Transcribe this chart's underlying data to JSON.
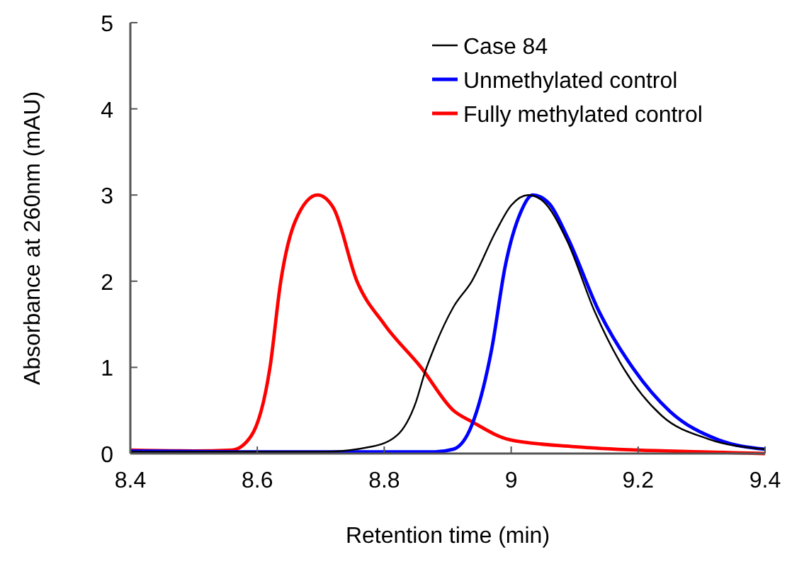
{
  "chart_data": {
    "type": "line",
    "xlabel": "Retention time (min)",
    "ylabel": "Absorbance at 260nm (mAU)",
    "xlim": [
      8.4,
      9.4
    ],
    "ylim": [
      0,
      5
    ],
    "xticks": [
      8.4,
      8.6,
      8.8,
      {
        "value": 9,
        "label": "9"
      },
      9.2,
      9.4
    ],
    "yticks": [
      0,
      1,
      2,
      3,
      4,
      5
    ],
    "grid": false,
    "legend": "top right",
    "marker": "none",
    "line_style": "solid",
    "series": [
      {
        "name": "Case 84",
        "color": "#000000",
        "x": [
          8.4,
          8.6,
          8.7,
          8.78,
          8.82,
          8.85,
          8.864,
          8.88,
          8.909,
          8.938,
          8.976,
          9.0,
          9.027,
          9.05,
          9.088,
          9.132,
          9.177,
          9.237,
          9.31,
          9.4
        ],
        "values": [
          0.02,
          0.02,
          0.02,
          0.08,
          0.21,
          0.6,
          0.94,
          1.25,
          1.7,
          2.0,
          2.58,
          2.88,
          3.0,
          2.93,
          2.47,
          1.64,
          0.99,
          0.44,
          0.17,
          0.05
        ]
      },
      {
        "name": "Unmethylated control",
        "color": "#0000ff",
        "x": [
          8.4,
          8.6,
          8.8,
          8.88,
          8.909,
          8.938,
          8.969,
          8.991,
          9.015,
          9.034,
          9.06,
          9.088,
          9.139,
          9.192,
          9.25,
          9.326,
          9.4
        ],
        "values": [
          0.03,
          0.02,
          0.02,
          0.02,
          0.05,
          0.33,
          1.2,
          2.19,
          2.8,
          3.0,
          2.9,
          2.52,
          1.64,
          0.99,
          0.49,
          0.16,
          0.05
        ]
      },
      {
        "name": "Fully methylated control",
        "color": "#ff0000",
        "x": [
          8.4,
          8.5,
          8.56,
          8.59,
          8.62,
          8.637,
          8.66,
          8.695,
          8.72,
          8.757,
          8.8,
          8.858,
          8.909,
          8.938,
          8.998,
          9.1,
          9.2,
          9.3,
          9.4
        ],
        "values": [
          0.04,
          0.03,
          0.04,
          0.2,
          1.0,
          2.0,
          2.7,
          3.0,
          2.85,
          2.0,
          1.5,
          1.0,
          0.5,
          0.37,
          0.16,
          0.08,
          0.04,
          0.02,
          0.0
        ]
      }
    ]
  }
}
